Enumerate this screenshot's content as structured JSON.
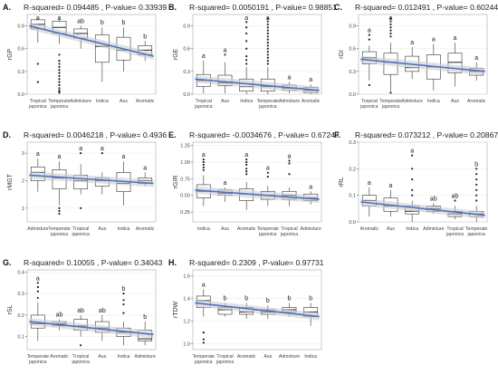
{
  "chart_data": [
    {
      "panel": "A.",
      "title": "R-squared= 0.094485 , P-value= 0.33939",
      "type": "box",
      "ylabel": "rGP",
      "ylim": [
        0.0,
        1.05
      ],
      "yticks": [
        "0.0",
        "0.3",
        "0.6",
        "0.9"
      ],
      "ytick_values": [
        0.0,
        0.3,
        0.6,
        0.9
      ],
      "categories": [
        "Tropical japonica",
        "Temperate japonica",
        "Admixture",
        "Indica",
        "Aus",
        "Aromatic"
      ],
      "boxes": [
        {
          "min": 0.68,
          "q1": 0.86,
          "median": 0.92,
          "q3": 0.98,
          "max": 1.0,
          "outliers": [
            0.4,
            0.16
          ]
        },
        {
          "min": 0.66,
          "q1": 0.8,
          "median": 0.88,
          "q3": 0.96,
          "max": 1.0,
          "outliers": [
            0.52,
            0.44,
            0.4,
            0.36,
            0.32,
            0.28,
            0.24,
            0.2,
            0.16,
            0.12,
            0.08,
            0.05,
            0.03,
            0.02
          ]
        },
        {
          "min": 0.6,
          "q1": 0.74,
          "median": 0.8,
          "q3": 0.86,
          "max": 0.9,
          "outliers": []
        },
        {
          "min": 0.16,
          "q1": 0.42,
          "median": 0.63,
          "q3": 0.78,
          "max": 0.88,
          "outliers": []
        },
        {
          "min": 0.3,
          "q1": 0.45,
          "median": 0.58,
          "q3": 0.75,
          "max": 0.88,
          "outliers": []
        },
        {
          "min": 0.44,
          "q1": 0.52,
          "median": 0.58,
          "q3": 0.64,
          "max": 0.7,
          "outliers": []
        }
      ],
      "letters": [
        "a",
        "a",
        "ab",
        "b",
        "b",
        "b"
      ],
      "trend": [
        0.9,
        0.5
      ]
    },
    {
      "panel": "B.",
      "title": "R-squared= 0.0050191 , P-value= 0.98851",
      "type": "box",
      "ylabel": "rGE",
      "ylim": [
        0.0,
        1.05
      ],
      "yticks": [
        "0.0",
        "0.3",
        "0.6",
        "0.9"
      ],
      "ytick_values": [
        0.0,
        0.3,
        0.6,
        0.9
      ],
      "categories": [
        "Tropical japonica",
        "Aus",
        "Indica",
        "Temperate japonica",
        "Admixture",
        "Aromatic"
      ],
      "boxes": [
        {
          "min": 0.01,
          "q1": 0.1,
          "median": 0.18,
          "q3": 0.26,
          "max": 0.44,
          "outliers": []
        },
        {
          "min": 0.01,
          "q1": 0.11,
          "median": 0.15,
          "q3": 0.25,
          "max": 0.42,
          "outliers": [
            0.52
          ]
        },
        {
          "min": 0.0,
          "q1": 0.04,
          "median": 0.1,
          "q3": 0.2,
          "max": 0.36,
          "outliers": [
            0.95,
            0.88,
            0.8,
            0.7,
            0.6,
            0.5,
            0.45,
            0.4
          ]
        },
        {
          "min": 0.0,
          "q1": 0.04,
          "median": 0.1,
          "q3": 0.2,
          "max": 0.36,
          "outliers": [
            1.0,
            0.96,
            0.92,
            0.88,
            0.84,
            0.8,
            0.76,
            0.72,
            0.68,
            0.64,
            0.6,
            0.56,
            0.52,
            0.48,
            0.44,
            0.4
          ]
        },
        {
          "min": 0.01,
          "q1": 0.05,
          "median": 0.08,
          "q3": 0.12,
          "max": 0.16,
          "outliers": []
        },
        {
          "min": 0.0,
          "q1": 0.02,
          "median": 0.05,
          "q3": 0.09,
          "max": 0.13,
          "outliers": []
        }
      ],
      "letters": [
        "a",
        "a",
        "a",
        "a",
        "a",
        "a"
      ],
      "trend": [
        0.2,
        0.05
      ]
    },
    {
      "panel": "C.",
      "title": "R-squared= 0.012491 , P-value= 0.60244",
      "type": "box",
      "ylabel": "rGI",
      "ylim": [
        0.0,
        1.05
      ],
      "yticks": [
        "0.0",
        "0.3",
        "0.6",
        "0.9"
      ],
      "ytick_values": [
        0.0,
        0.3,
        0.6,
        0.9
      ],
      "categories": [
        "Tropical japonica",
        "Temperate japonica",
        "Admixture",
        "Indica",
        "Aus",
        "Aromatic"
      ],
      "boxes": [
        {
          "min": 0.18,
          "q1": 0.4,
          "median": 0.48,
          "q3": 0.56,
          "max": 0.64,
          "outliers": [
            0.78,
            0.72,
            0.12
          ]
        },
        {
          "min": 0.04,
          "q1": 0.26,
          "median": 0.42,
          "q3": 0.54,
          "max": 0.68,
          "outliers": [
            1.0,
            0.96,
            0.92,
            0.88,
            0.84,
            0.8,
            0.76,
            0.02
          ]
        },
        {
          "min": 0.2,
          "q1": 0.3,
          "median": 0.35,
          "q3": 0.5,
          "max": 0.62,
          "outliers": []
        },
        {
          "min": 0.05,
          "q1": 0.2,
          "median": 0.36,
          "q3": 0.52,
          "max": 0.66,
          "outliers": []
        },
        {
          "min": 0.1,
          "q1": 0.28,
          "median": 0.42,
          "q3": 0.54,
          "max": 0.68,
          "outliers": []
        },
        {
          "min": 0.18,
          "q1": 0.25,
          "median": 0.3,
          "q3": 0.34,
          "max": 0.42,
          "outliers": []
        }
      ],
      "letters": [
        "a",
        "a",
        "a",
        "a",
        "a",
        "a"
      ],
      "trend": [
        0.46,
        0.3
      ]
    },
    {
      "panel": "D.",
      "title": "R-squared= 0.0046218 , P-value= 0.4936",
      "type": "box",
      "ylabel": "rMGT",
      "ylim": [
        0.5,
        3.4
      ],
      "yticks": [
        "1",
        "2",
        "3"
      ],
      "ytick_values": [
        1,
        2,
        3
      ],
      "categories": [
        "Admixture",
        "Temperate japonica",
        "Tropical japonica",
        "Aus",
        "Indica",
        "Aromatic"
      ],
      "boxes": [
        {
          "min": 1.6,
          "q1": 2.0,
          "median": 2.3,
          "q3": 2.5,
          "max": 2.8,
          "outliers": []
        },
        {
          "min": 1.1,
          "q1": 1.7,
          "median": 2.1,
          "q3": 2.4,
          "max": 2.7,
          "outliers": [
            1.0,
            0.9,
            0.8
          ]
        },
        {
          "min": 1.5,
          "q1": 1.7,
          "median": 2.0,
          "q3": 2.2,
          "max": 2.6,
          "outliers": [
            3.0,
            1.0
          ]
        },
        {
          "min": 1.5,
          "q1": 1.8,
          "median": 2.0,
          "q3": 2.1,
          "max": 2.3,
          "outliers": [
            3.0
          ]
        },
        {
          "min": 1.1,
          "q1": 1.6,
          "median": 1.9,
          "q3": 2.3,
          "max": 2.7,
          "outliers": []
        },
        {
          "min": 1.8,
          "q1": 1.9,
          "median": 2.0,
          "q3": 2.1,
          "max": 2.3,
          "outliers": []
        }
      ],
      "letters": [
        "a",
        "a",
        "a",
        "a",
        "a",
        "a"
      ],
      "trend": [
        2.2,
        1.9
      ]
    },
    {
      "panel": "E.",
      "title": "R-squared= -0.0034676 , P-value= 0.67247",
      "type": "box",
      "ylabel": "rGIR",
      "ylim": [
        0.1,
        1.3
      ],
      "yticks": [
        "0.25",
        "0.50",
        "0.75",
        "1.00",
        "1.25"
      ],
      "ytick_values": [
        0.25,
        0.5,
        0.75,
        1.0,
        1.25
      ],
      "categories": [
        "Indica",
        "Aus",
        "Aromatic",
        "Temperate japonica",
        "Tropical japonica",
        "Admixture"
      ],
      "boxes": [
        {
          "min": 0.34,
          "q1": 0.46,
          "median": 0.56,
          "q3": 0.66,
          "max": 0.8,
          "outliers": [
            1.04,
            1.0,
            0.96,
            0.92,
            0.88
          ]
        },
        {
          "min": 0.4,
          "q1": 0.5,
          "median": 0.53,
          "q3": 0.58,
          "max": 0.62,
          "outliers": []
        },
        {
          "min": 0.28,
          "q1": 0.42,
          "median": 0.52,
          "q3": 0.6,
          "max": 0.7,
          "outliers": [
            1.04,
            1.0,
            0.96,
            0.9,
            0.86,
            0.82
          ]
        },
        {
          "min": 0.34,
          "q1": 0.44,
          "median": 0.5,
          "q3": 0.56,
          "max": 0.64,
          "outliers": [
            0.84,
            0.78
          ]
        },
        {
          "min": 0.34,
          "q1": 0.44,
          "median": 0.5,
          "q3": 0.56,
          "max": 0.62,
          "outliers": [
            1.02,
            0.98,
            0.82
          ]
        },
        {
          "min": 0.36,
          "q1": 0.42,
          "median": 0.46,
          "q3": 0.52,
          "max": 0.56,
          "outliers": []
        }
      ],
      "letters": [
        "a",
        "a",
        "a",
        "a",
        "a",
        "a"
      ],
      "trend": [
        0.58,
        0.44
      ]
    },
    {
      "panel": "F.",
      "title": "R-squared= 0.073212 , P-value= 0.20867",
      "type": "box",
      "ylabel": "rRL",
      "ylim": [
        0.0,
        0.3
      ],
      "yticks": [
        "0.0",
        "0.1",
        "0.2",
        "0.3"
      ],
      "ytick_values": [
        0.0,
        0.1,
        0.2,
        0.3
      ],
      "categories": [
        "Aromatic",
        "Aus",
        "Indica",
        "Admixture",
        "Tropical japonica",
        "Temperate japonica"
      ],
      "boxes": [
        {
          "min": 0.02,
          "q1": 0.06,
          "median": 0.08,
          "q3": 0.1,
          "max": 0.13,
          "outliers": []
        },
        {
          "min": 0.02,
          "q1": 0.04,
          "median": 0.06,
          "q3": 0.09,
          "max": 0.12,
          "outliers": []
        },
        {
          "min": 0.0,
          "q1": 0.03,
          "median": 0.04,
          "q3": 0.06,
          "max": 0.08,
          "outliers": [
            0.25,
            0.2,
            0.16,
            0.12,
            0.1
          ]
        },
        {
          "min": 0.03,
          "q1": 0.04,
          "median": 0.05,
          "q3": 0.06,
          "max": 0.07,
          "outliers": []
        },
        {
          "min": 0.01,
          "q1": 0.02,
          "median": 0.03,
          "q3": 0.04,
          "max": 0.06,
          "outliers": [
            0.08
          ]
        },
        {
          "min": 0.0,
          "q1": 0.02,
          "median": 0.03,
          "q3": 0.04,
          "max": 0.06,
          "outliers": [
            0.2,
            0.18,
            0.16,
            0.14,
            0.12,
            0.1,
            0.08
          ]
        }
      ],
      "letters": [
        "a",
        "a",
        "a",
        "ab",
        "ab",
        "b"
      ],
      "trend": [
        0.075,
        0.025
      ]
    },
    {
      "panel": "G.",
      "title": "R-squared= 0.10055 , P-value= 0.34043",
      "type": "box",
      "ylabel": "rSL",
      "ylim": [
        0.04,
        0.41
      ],
      "yticks": [
        "0.1",
        "0.2",
        "0.3",
        "0.4"
      ],
      "ytick_values": [
        0.1,
        0.2,
        0.3,
        0.4
      ],
      "categories": [
        "Temperate japonica",
        "Aromatic",
        "Tropical japonica",
        "Aus",
        "Indica",
        "Admixture"
      ],
      "boxes": [
        {
          "min": 0.08,
          "q1": 0.14,
          "median": 0.16,
          "q3": 0.2,
          "max": 0.26,
          "outliers": [
            0.35,
            0.33,
            0.31,
            0.28
          ]
        },
        {
          "min": 0.13,
          "q1": 0.15,
          "median": 0.16,
          "q3": 0.17,
          "max": 0.18,
          "outliers": []
        },
        {
          "min": 0.1,
          "q1": 0.13,
          "median": 0.15,
          "q3": 0.18,
          "max": 0.2,
          "outliers": [
            0.06
          ]
        },
        {
          "min": 0.08,
          "q1": 0.12,
          "median": 0.14,
          "q3": 0.17,
          "max": 0.2,
          "outliers": []
        },
        {
          "min": 0.06,
          "q1": 0.1,
          "median": 0.12,
          "q3": 0.14,
          "max": 0.17,
          "outliers": [
            0.3,
            0.27,
            0.25,
            0.21
          ]
        },
        {
          "min": 0.06,
          "q1": 0.08,
          "median": 0.09,
          "q3": 0.13,
          "max": 0.17,
          "outliers": []
        }
      ],
      "letters": [
        "a",
        "ab",
        "ab",
        "ab",
        "b",
        "b"
      ],
      "trend": [
        0.17,
        0.11
      ]
    },
    {
      "panel": "H.",
      "title": "R-squared= 0.2309 , P-value= 0.97731",
      "type": "box",
      "ylabel": "rTDW",
      "ylim": [
        0.95,
        1.65
      ],
      "yticks": [
        "1.0",
        "1.2",
        "1.4",
        "1.6"
      ],
      "ytick_values": [
        1.0,
        1.2,
        1.4,
        1.6
      ],
      "categories": [
        "Temperate japonica",
        "Tropical japonica",
        "Aromatic",
        "Aus",
        "Admixture",
        "Indica"
      ],
      "boxes": [
        {
          "min": 1.24,
          "q1": 1.32,
          "median": 1.38,
          "q3": 1.42,
          "max": 1.48,
          "outliers": [
            1.1,
            1.04,
            1.01
          ]
        },
        {
          "min": 1.24,
          "q1": 1.26,
          "median": 1.3,
          "q3": 1.32,
          "max": 1.36,
          "outliers": []
        },
        {
          "min": 1.22,
          "q1": 1.26,
          "median": 1.28,
          "q3": 1.32,
          "max": 1.36,
          "outliers": []
        },
        {
          "min": 1.22,
          "q1": 1.26,
          "median": 1.28,
          "q3": 1.3,
          "max": 1.34,
          "outliers": []
        },
        {
          "min": 1.24,
          "q1": 1.28,
          "median": 1.3,
          "q3": 1.32,
          "max": 1.36,
          "outliers": []
        },
        {
          "min": 1.16,
          "q1": 1.24,
          "median": 1.28,
          "q3": 1.32,
          "max": 1.36,
          "outliers": []
        }
      ],
      "letters": [
        "a",
        "b",
        "b",
        "b",
        "b",
        "b"
      ],
      "trend": [
        1.36,
        1.24
      ]
    }
  ],
  "colors": {
    "box_fill": "#ffffff",
    "box_stroke": "#333333",
    "trend_line": "#4a72c4",
    "trend_band": "#c9c9c9",
    "outlier": "#222222"
  }
}
